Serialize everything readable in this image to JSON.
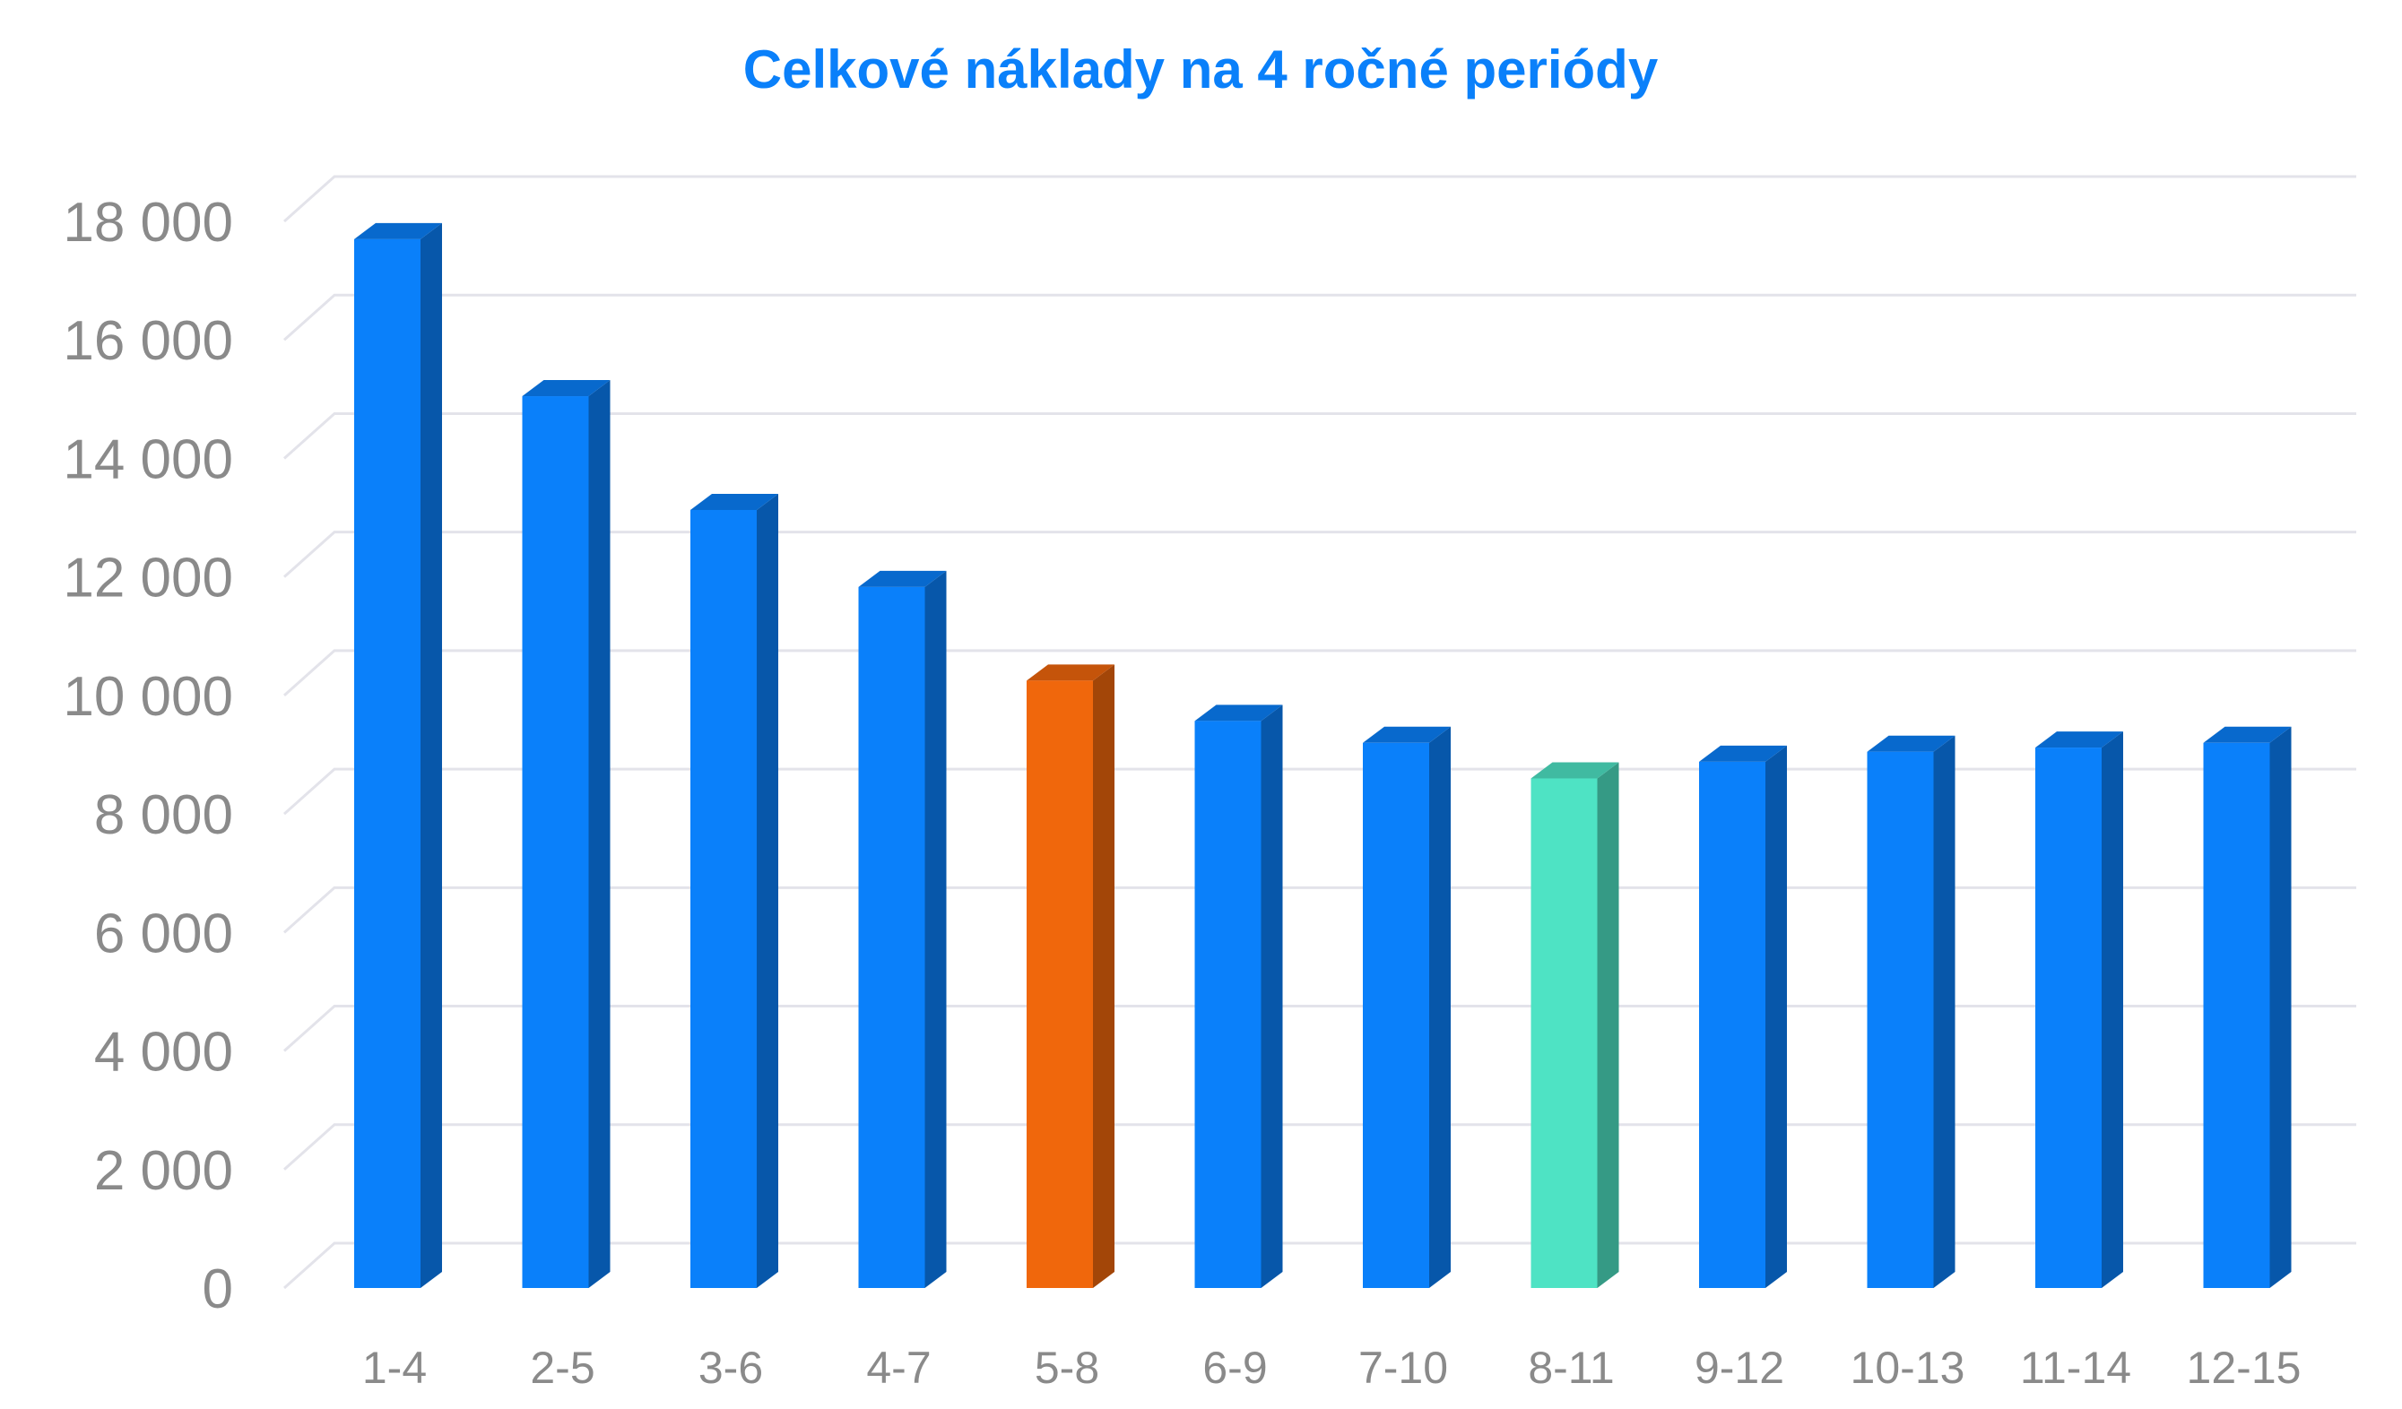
{
  "chart_data": {
    "type": "bar",
    "title": "Celkové náklady na 4 ročné periódy",
    "xlabel": "",
    "ylabel": "",
    "ylim": [
      0,
      18000
    ],
    "yticks": [
      0,
      2000,
      4000,
      6000,
      8000,
      10000,
      12000,
      14000,
      16000,
      18000
    ],
    "ytick_labels": [
      "0",
      "2 000",
      "4 000",
      "6 000",
      "8 000",
      "10 000",
      "12 000",
      "14 000",
      "16 000",
      "18 000"
    ],
    "categories": [
      "1-4",
      "2-5",
      "3-6",
      "4-7",
      "5-8",
      "6-9",
      "7-10",
      "8-11",
      "9-12",
      "10-13",
      "11-14",
      "12-15"
    ],
    "values": [
      17700,
      15050,
      13130,
      11830,
      10250,
      9570,
      9200,
      8600,
      8880,
      9050,
      9120,
      9200
    ],
    "bar_colors": [
      "#0a80fa",
      "#0a80fa",
      "#0a80fa",
      "#0a80fa",
      "#f0670c",
      "#0a80fa",
      "#0a80fa",
      "#4ee3c4",
      "#0a80fa",
      "#0a80fa",
      "#0a80fa",
      "#0a80fa"
    ],
    "grid": true,
    "legend": "none",
    "style": "3d-column"
  },
  "colors": {
    "title": "#0a80fa",
    "tick_text": "#8a8a8a",
    "grid": "#e3e3ea"
  }
}
